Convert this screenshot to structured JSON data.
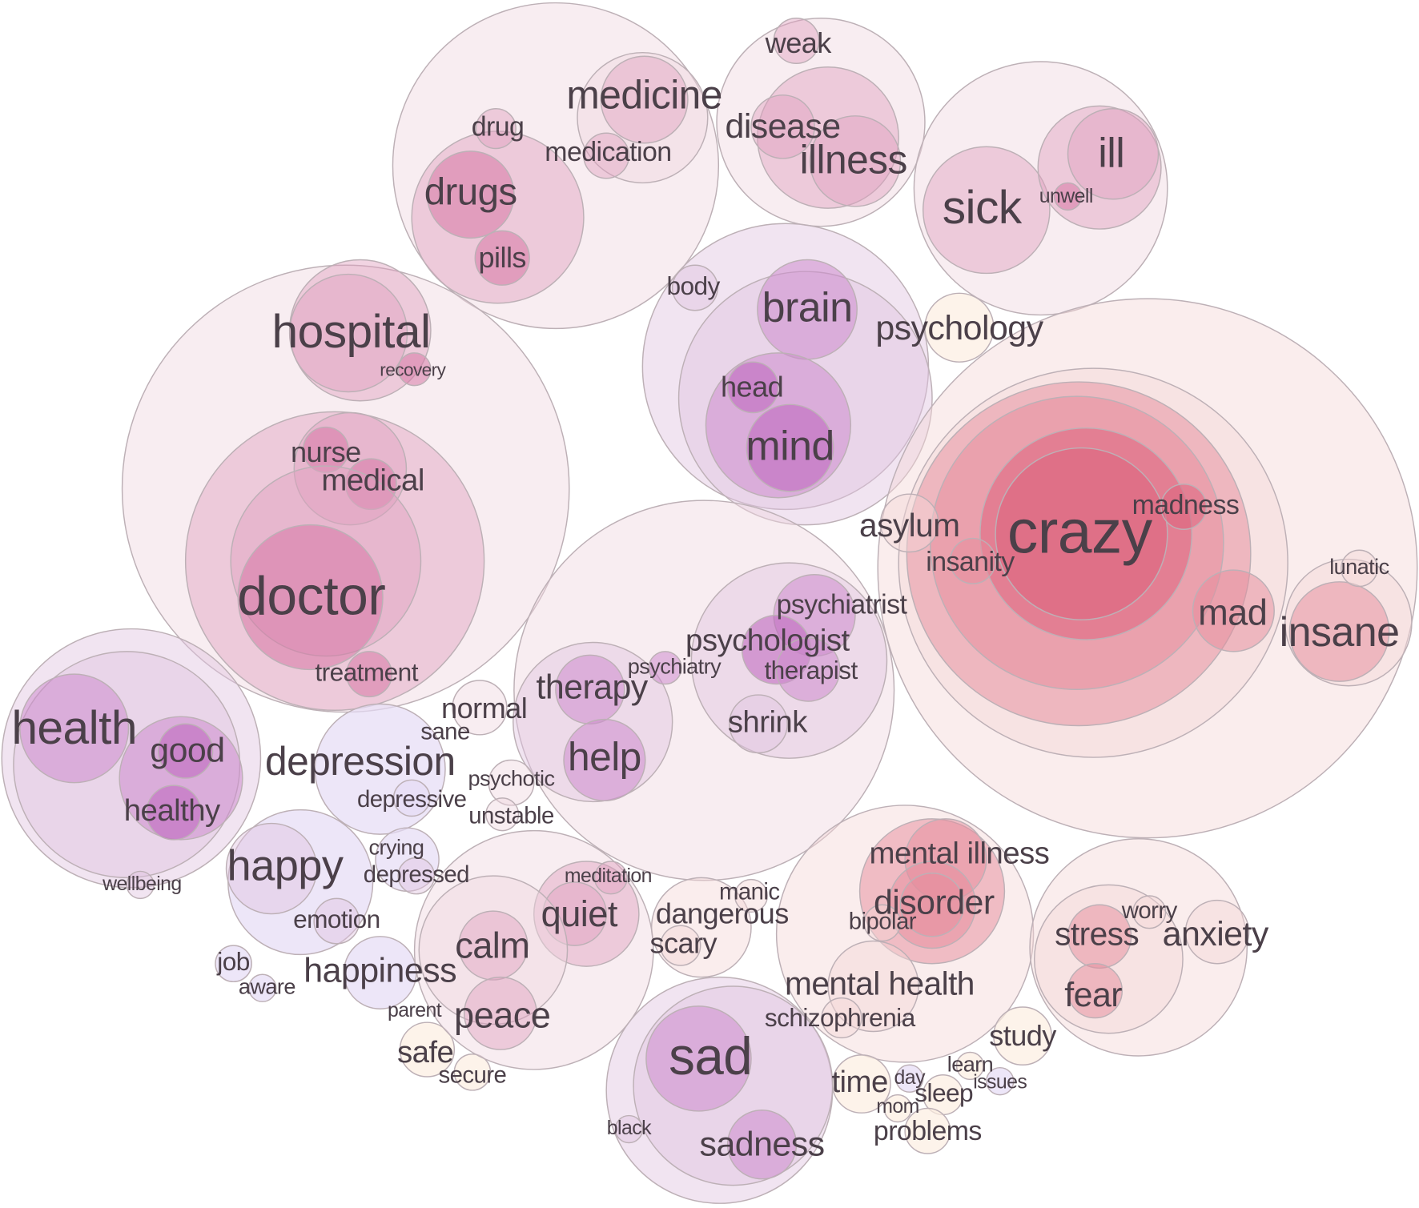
{
  "nodes": [
    {
      "label": "weak"
    },
    {
      "label": "medicine"
    },
    {
      "label": "drug"
    },
    {
      "label": "medication"
    },
    {
      "label": "disease"
    },
    {
      "label": "illness"
    },
    {
      "label": "drugs"
    },
    {
      "label": "ill"
    },
    {
      "label": "sick"
    },
    {
      "label": "unwell"
    },
    {
      "label": "pills"
    },
    {
      "label": "body"
    },
    {
      "label": "brain"
    },
    {
      "label": "hospital"
    },
    {
      "label": "psychology"
    },
    {
      "label": "recovery"
    },
    {
      "label": "head"
    },
    {
      "label": "mind"
    },
    {
      "label": "nurse"
    },
    {
      "label": "medical"
    },
    {
      "label": "madness"
    },
    {
      "label": "asylum"
    },
    {
      "label": "crazy"
    },
    {
      "label": "insanity"
    },
    {
      "label": "lunatic"
    },
    {
      "label": "doctor"
    },
    {
      "label": "psychiatrist"
    },
    {
      "label": "mad"
    },
    {
      "label": "insane"
    },
    {
      "label": "psychologist"
    },
    {
      "label": "psychiatry"
    },
    {
      "label": "therapist"
    },
    {
      "label": "treatment"
    },
    {
      "label": "therapy"
    },
    {
      "label": "normal"
    },
    {
      "label": "health"
    },
    {
      "label": "shrink"
    },
    {
      "label": "sane"
    },
    {
      "label": "good"
    },
    {
      "label": "help"
    },
    {
      "label": "depression"
    },
    {
      "label": "psychotic"
    },
    {
      "label": "depressive"
    },
    {
      "label": "healthy"
    },
    {
      "label": "unstable"
    },
    {
      "label": "mental illness"
    },
    {
      "label": "crying"
    },
    {
      "label": "happy"
    },
    {
      "label": "depressed"
    },
    {
      "label": "meditation"
    },
    {
      "label": "wellbeing"
    },
    {
      "label": "manic"
    },
    {
      "label": "disorder"
    },
    {
      "label": "quiet"
    },
    {
      "label": "dangerous"
    },
    {
      "label": "worry"
    },
    {
      "label": "emotion"
    },
    {
      "label": "bipolar"
    },
    {
      "label": "stress"
    },
    {
      "label": "anxiety"
    },
    {
      "label": "scary"
    },
    {
      "label": "calm"
    },
    {
      "label": "job"
    },
    {
      "label": "happiness"
    },
    {
      "label": "mental health"
    },
    {
      "label": "aware"
    },
    {
      "label": "fear"
    },
    {
      "label": "parent"
    },
    {
      "label": "peace"
    },
    {
      "label": "schizophrenia"
    },
    {
      "label": "study"
    },
    {
      "label": "safe"
    },
    {
      "label": "sad"
    },
    {
      "label": "learn"
    },
    {
      "label": "day"
    },
    {
      "label": "issues"
    },
    {
      "label": "secure"
    },
    {
      "label": "time"
    },
    {
      "label": "sleep"
    },
    {
      "label": "mom"
    },
    {
      "label": "black"
    },
    {
      "label": "problems"
    },
    {
      "label": "sadness"
    }
  ]
}
